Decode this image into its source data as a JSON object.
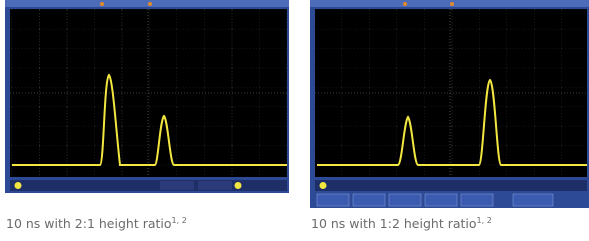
{
  "figures": [
    {
      "caption": "10 ns with 2:1 height ratio",
      "superscript": "1, 2"
    },
    {
      "caption": "10 ns with 1:2 height ratio",
      "superscript": "1, 2"
    }
  ]
}
